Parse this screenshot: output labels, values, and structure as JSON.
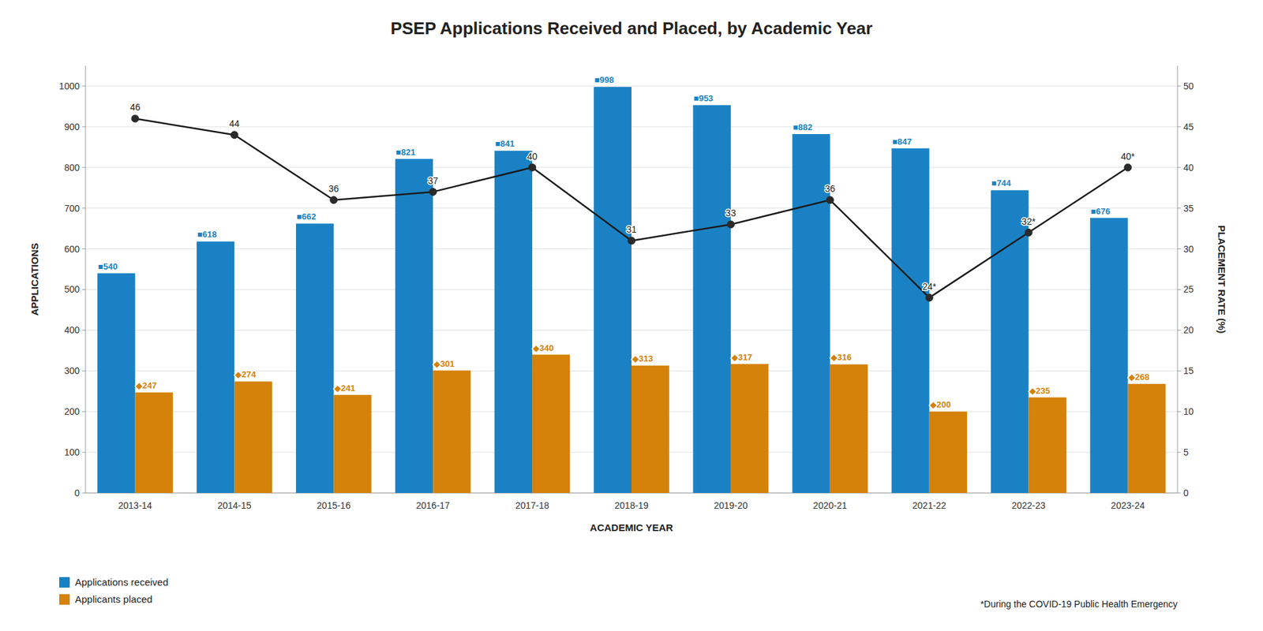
{
  "chart_data": {
    "type": "bar",
    "title": "PSEP Applications Received and Placed, by Academic Year",
    "categories": [
      "2013-14",
      "2014-15",
      "2015-16",
      "2016-17",
      "2017-18",
      "2018-19",
      "2019-20",
      "2020-21",
      "2021-22",
      "2022-23",
      "2023-24"
    ],
    "series": [
      {
        "name": "Applications received",
        "color": "#1a82c4",
        "values": [
          540,
          618,
          662,
          821,
          841,
          998,
          953,
          882,
          847,
          744,
          676
        ],
        "value_labels": [
          "■540",
          "■618",
          "■662",
          "■821",
          "■841",
          "■998",
          "■953",
          "■882",
          "■847",
          "■744",
          "■676"
        ]
      },
      {
        "name": "Applicants placed",
        "color": "#d4820a",
        "values": [
          247,
          274,
          241,
          301,
          340,
          313,
          317,
          316,
          200,
          235,
          268
        ],
        "value_labels": [
          "◆247",
          "◆274",
          "◆241",
          "◆301",
          "◆340",
          "◆313",
          "◆317",
          "◆316",
          "◆200",
          "◆235",
          "◆268"
        ]
      },
      {
        "type": "line",
        "axis": "y2",
        "color": "#1a1a1a",
        "marker": "circle",
        "values": [
          46,
          44,
          36,
          37,
          40,
          31,
          33,
          36,
          24,
          32,
          40
        ],
        "value_labels": [
          "46",
          "44",
          "36",
          "37",
          "40",
          "31",
          "33",
          "36",
          "24*",
          "32*",
          "40*"
        ]
      }
    ],
    "xlabel": "ACADEMIC YEAR",
    "ylabel": "APPLICATIONS",
    "y2label": "PLACEMENT RATE (%)",
    "ylim": [
      0,
      1050
    ],
    "yticks": [
      0,
      100,
      200,
      300,
      400,
      500,
      600,
      700,
      800,
      900,
      1000
    ],
    "y2lim": [
      0,
      52.5
    ],
    "y2ticks": [
      0,
      5,
      10,
      15,
      20,
      25,
      30,
      35,
      40,
      45,
      50
    ],
    "grid": true,
    "legend": "lower left",
    "data_labels": true,
    "annotations": [
      "*During the COVID-19 Public Health Emergency"
    ]
  }
}
